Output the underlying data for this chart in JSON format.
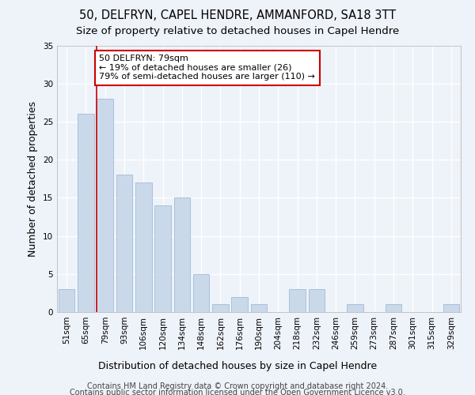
{
  "title1": "50, DELFRYN, CAPEL HENDRE, AMMANFORD, SA18 3TT",
  "title2": "Size of property relative to detached houses in Capel Hendre",
  "xlabel": "Distribution of detached houses by size in Capel Hendre",
  "ylabel": "Number of detached properties",
  "footer1": "Contains HM Land Registry data © Crown copyright and database right 2024.",
  "footer2": "Contains public sector information licensed under the Open Government Licence v3.0.",
  "annotation_title": "50 DELFRYN: 79sqm",
  "annotation_line1": "← 19% of detached houses are smaller (26)",
  "annotation_line2": "79% of semi-detached houses are larger (110) →",
  "property_size_label": "79sqm",
  "bar_color": "#cad9ea",
  "bar_edge_color": "#a0bcd5",
  "vline_color": "#cc0000",
  "annotation_box_color": "#ffffff",
  "annotation_box_edge": "#cc0000",
  "categories": [
    "51sqm",
    "65sqm",
    "79sqm",
    "93sqm",
    "106sqm",
    "120sqm",
    "134sqm",
    "148sqm",
    "162sqm",
    "176sqm",
    "190sqm",
    "204sqm",
    "218sqm",
    "232sqm",
    "246sqm",
    "259sqm",
    "273sqm",
    "287sqm",
    "301sqm",
    "315sqm",
    "329sqm"
  ],
  "values": [
    3,
    26,
    28,
    18,
    17,
    14,
    15,
    5,
    1,
    2,
    1,
    0,
    3,
    3,
    0,
    1,
    0,
    1,
    0,
    0,
    1
  ],
  "ylim": [
    0,
    35
  ],
  "yticks": [
    0,
    5,
    10,
    15,
    20,
    25,
    30,
    35
  ],
  "background_color": "#eef2f9",
  "grid_color": "#ffffff",
  "title1_fontsize": 10.5,
  "title2_fontsize": 9.5,
  "axis_label_fontsize": 9,
  "tick_fontsize": 7.5,
  "footer_fontsize": 7,
  "annotation_fontsize": 8
}
